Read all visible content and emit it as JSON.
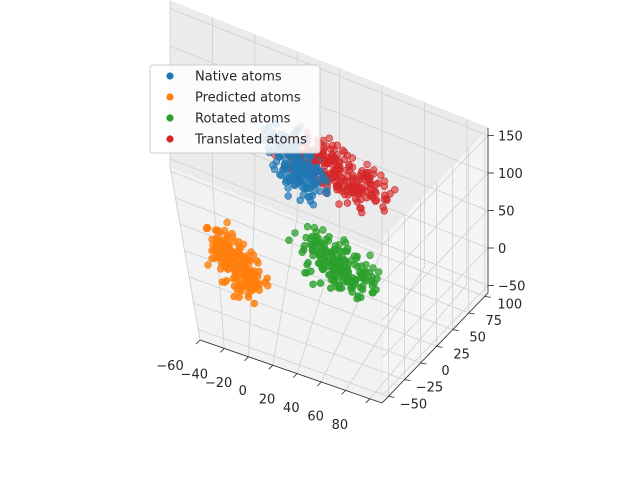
{
  "chart_data": {
    "type": "scatter3d",
    "title": "",
    "xlabel": "",
    "ylabel": "",
    "zlabel": "",
    "xlim": [
      -60,
      90
    ],
    "ylim": [
      -60,
      105
    ],
    "zlim": [
      -60,
      160
    ],
    "x_ticks": [
      "−60",
      "−40",
      "−20",
      "0",
      "20",
      "40",
      "60",
      "80"
    ],
    "y_ticks": [
      "−50",
      "−25",
      "0",
      "25",
      "50",
      "75",
      "100"
    ],
    "z_ticks": [
      "−50",
      "0",
      "50",
      "100",
      "150"
    ],
    "grid": true,
    "legend_position": "upper-left",
    "series": [
      {
        "name": "Native atoms",
        "color": "#1f77b4",
        "center": [
          5,
          45,
          80
        ],
        "spread": [
          14,
          14,
          28
        ],
        "count": 170
      },
      {
        "name": "Predicted atoms",
        "color": "#ff7f0e",
        "center": [
          -30,
          -10,
          -10
        ],
        "spread": [
          15,
          16,
          26
        ],
        "count": 190
      },
      {
        "name": "Rotated atoms",
        "color": "#2ca02c",
        "center": [
          35,
          5,
          20
        ],
        "spread": [
          22,
          18,
          16
        ],
        "count": 190
      },
      {
        "name": "Translated atoms",
        "color": "#d62728",
        "center": [
          25,
          60,
          75
        ],
        "spread": [
          24,
          16,
          22
        ],
        "count": 230
      }
    ]
  }
}
